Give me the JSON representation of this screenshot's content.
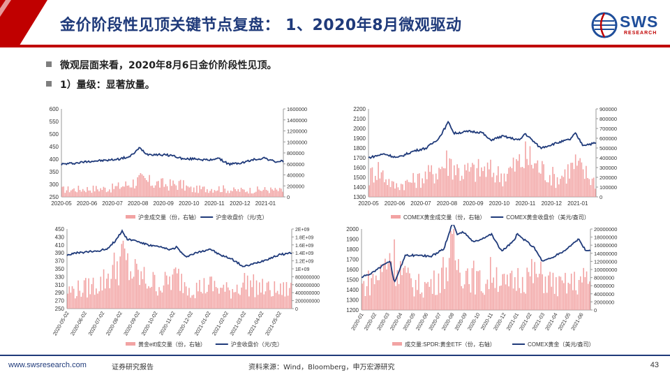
{
  "header": {
    "title": "金价阶段性见顶关键节点复盘： 1、2020年8月微观驱动",
    "logo_text": "SWS",
    "logo_sub": "RESEARCH"
  },
  "bullets": [
    "微观层面来看，2020年8月6日金价阶段性见顶。",
    "1）量级：显著放量。"
  ],
  "footer": {
    "site": "www.swsresearch.com",
    "report": "证券研究报告",
    "source": "资料来源：Wind，Bloomberg，申万宏源研究",
    "page": "43"
  },
  "colors": {
    "bar": "#f2a3a3",
    "line": "#1f3a7a",
    "header_red": "#c00000",
    "navy": "#1f3a7a"
  },
  "chart_data": [
    {
      "type": "bar+line",
      "left_ticks": [
        "600",
        "550",
        "500",
        "450",
        "400",
        "350",
        "300",
        "250"
      ],
      "left_range": [
        250,
        600
      ],
      "right_ticks": [
        "1600000",
        "1400000",
        "1200000",
        "1000000",
        "800000",
        "600000",
        "400000",
        "200000",
        "0"
      ],
      "right_range": [
        0,
        1600000
      ],
      "x_ticks": [
        "2020-05",
        "2020-06",
        "2020-07",
        "2020-08",
        "2020-09",
        "2020-10",
        "2020-11",
        "2020-12",
        "2021-01"
      ],
      "x_range": [
        "2020-05-01",
        "2021-01-31"
      ],
      "legend": [
        "沪金成交量（份，右轴）",
        "沪金收盘价（元/克）"
      ],
      "line": [
        [
          "2020-05-01",
          380
        ],
        [
          "2020-05-20",
          385
        ],
        [
          "2020-06-05",
          392
        ],
        [
          "2020-06-25",
          395
        ],
        [
          "2020-07-10",
          400
        ],
        [
          "2020-07-25",
          410
        ],
        [
          "2020-08-06",
          445
        ],
        [
          "2020-08-15",
          420
        ],
        [
          "2020-08-31",
          418
        ],
        [
          "2020-09-15",
          415
        ],
        [
          "2020-09-30",
          400
        ],
        [
          "2020-10-15",
          402
        ],
        [
          "2020-10-31",
          395
        ],
        [
          "2020-11-10",
          405
        ],
        [
          "2020-11-25",
          380
        ],
        [
          "2020-12-10",
          385
        ],
        [
          "2020-12-25",
          398
        ],
        [
          "2021-01-08",
          405
        ],
        [
          "2021-01-20",
          390
        ],
        [
          "2021-01-31",
          392
        ]
      ],
      "bars": [
        [
          "2020-05-01",
          180000
        ],
        [
          "2020-06-01",
          200000
        ],
        [
          "2020-07-01",
          210000
        ],
        [
          "2020-07-20",
          300000
        ],
        [
          "2020-08-06",
          420000
        ],
        [
          "2020-08-20",
          360000
        ],
        [
          "2020-09-10",
          300000
        ],
        [
          "2020-09-25",
          320000
        ],
        [
          "2020-10-10",
          180000
        ],
        [
          "2020-11-10",
          220000
        ],
        [
          "2020-12-01",
          160000
        ],
        [
          "2021-01-10",
          180000
        ],
        [
          "2021-01-31",
          150000
        ]
      ]
    },
    {
      "type": "bar+line",
      "left_ticks": [
        "2200",
        "2100",
        "2000",
        "1900",
        "1800",
        "1700",
        "1600",
        "1500",
        "1400",
        "1300"
      ],
      "left_range": [
        1300,
        2200
      ],
      "right_ticks": [
        "900000",
        "800000",
        "700000",
        "600000",
        "500000",
        "400000",
        "300000",
        "200000",
        "100000",
        "0"
      ],
      "right_range": [
        0,
        900000
      ],
      "x_ticks": [
        "2020-05",
        "2020-06",
        "2020-07",
        "2020-08",
        "2020-09",
        "2020-10",
        "2020-11",
        "2020-12",
        "2021-01"
      ],
      "x_range": [
        "2020-05-01",
        "2021-01-31"
      ],
      "legend": [
        "COMEX黄金成交量（份，右轴）",
        "COMEX黄金收盘价（美元/盎司）"
      ],
      "line": [
        [
          "2020-05-01",
          1700
        ],
        [
          "2020-05-20",
          1740
        ],
        [
          "2020-06-05",
          1700
        ],
        [
          "2020-06-25",
          1770
        ],
        [
          "2020-07-10",
          1800
        ],
        [
          "2020-07-25",
          1900
        ],
        [
          "2020-08-06",
          2070
        ],
        [
          "2020-08-12",
          1950
        ],
        [
          "2020-08-31",
          1970
        ],
        [
          "2020-09-15",
          1960
        ],
        [
          "2020-09-25",
          1880
        ],
        [
          "2020-10-10",
          1920
        ],
        [
          "2020-10-31",
          1880
        ],
        [
          "2020-11-06",
          1950
        ],
        [
          "2020-11-25",
          1800
        ],
        [
          "2020-12-10",
          1840
        ],
        [
          "2020-12-31",
          1890
        ],
        [
          "2021-01-06",
          1950
        ],
        [
          "2021-01-15",
          1830
        ],
        [
          "2021-01-31",
          1850
        ]
      ],
      "bars": [
        [
          "2020-05-01",
          250000
        ],
        [
          "2020-05-10",
          420000
        ],
        [
          "2020-06-01",
          150000
        ],
        [
          "2020-07-01",
          250000
        ],
        [
          "2020-07-20",
          350000
        ],
        [
          "2020-08-06",
          520000
        ],
        [
          "2020-08-20",
          350000
        ],
        [
          "2020-09-20",
          380000
        ],
        [
          "2020-10-10",
          300000
        ],
        [
          "2020-11-09",
          560000
        ],
        [
          "2020-11-25",
          400000
        ],
        [
          "2020-12-15",
          250000
        ],
        [
          "2021-01-06",
          450000
        ],
        [
          "2021-01-31",
          200000
        ]
      ]
    },
    {
      "type": "bar+line",
      "left_ticks": [
        "450",
        "430",
        "410",
        "390",
        "370",
        "350",
        "330",
        "310",
        "290",
        "270",
        "250"
      ],
      "left_range": [
        250,
        450
      ],
      "right_ticks": [
        "2E+09",
        "1.8E+09",
        "1.6E+09",
        "1.4E+09",
        "1.2E+09",
        "1E+09",
        "800000000",
        "600000000",
        "400000000",
        "200000000",
        "0"
      ],
      "right_range": [
        0,
        2000000000
      ],
      "x_ticks": [
        "2020-05-02",
        "2020-06-02",
        "2020-07-02",
        "2020-08-02",
        "2020-09-02",
        "2020-10-02",
        "2020-11-02",
        "2020-12-02",
        "2021-01-02",
        "2021-02-02",
        "2021-03-02",
        "2021-04-02",
        "2021-05-02"
      ],
      "x_range": [
        "2020-05-01",
        "2021-06-01"
      ],
      "legend": [
        "黄金etf成交量（份，右轴）",
        "沪金收盘价（元/克）"
      ],
      "line": [
        [
          "2020-05-01",
          385
        ],
        [
          "2020-05-20",
          390
        ],
        [
          "2020-06-05",
          392
        ],
        [
          "2020-06-25",
          395
        ],
        [
          "2020-07-10",
          400
        ],
        [
          "2020-07-25",
          420
        ],
        [
          "2020-08-06",
          445
        ],
        [
          "2020-08-15",
          425
        ],
        [
          "2020-08-31",
          420
        ],
        [
          "2020-09-20",
          410
        ],
        [
          "2020-10-10",
          405
        ],
        [
          "2020-10-31",
          398
        ],
        [
          "2020-11-10",
          405
        ],
        [
          "2020-11-25",
          380
        ],
        [
          "2020-12-15",
          390
        ],
        [
          "2021-01-08",
          400
        ],
        [
          "2021-01-25",
          385
        ],
        [
          "2021-02-15",
          375
        ],
        [
          "2021-03-08",
          355
        ],
        [
          "2021-03-25",
          362
        ],
        [
          "2021-04-15",
          372
        ],
        [
          "2021-05-10",
          385
        ],
        [
          "2021-05-31",
          390
        ]
      ],
      "bars": [
        [
          "2020-05-01",
          600000000
        ],
        [
          "2020-06-01",
          700000000
        ],
        [
          "2020-07-01",
          900000000
        ],
        [
          "2020-07-25",
          1400000000
        ],
        [
          "2020-08-06",
          1800000000
        ],
        [
          "2020-08-20",
          1300000000
        ],
        [
          "2020-09-15",
          1000000000
        ],
        [
          "2020-10-15",
          800000000
        ],
        [
          "2020-11-10",
          1100000000
        ],
        [
          "2020-12-10",
          700000000
        ],
        [
          "2021-01-10",
          800000000
        ],
        [
          "2021-02-10",
          600000000
        ],
        [
          "2021-03-10",
          900000000
        ],
        [
          "2021-04-10",
          700000000
        ],
        [
          "2021-05-10",
          600000000
        ],
        [
          "2021-05-31",
          700000000
        ]
      ]
    },
    {
      "type": "bar+line",
      "left_ticks": [
        "2000",
        "1900",
        "1800",
        "1700",
        "1600",
        "1500",
        "1400",
        "1300",
        "1200"
      ],
      "left_range": [
        1200,
        2000
      ],
      "right_ticks": [
        "20000000",
        "18000000",
        "16000000",
        "14000000",
        "12000000",
        "10000000",
        "8000000",
        "6000000",
        "4000000",
        "2000000",
        "0"
      ],
      "right_range": [
        0,
        20000000
      ],
      "x_ticks": [
        "2020-01",
        "2020-02",
        "2020-03",
        "2020-04",
        "2020-05",
        "2020-06",
        "2020-07",
        "2020-08",
        "2020-09",
        "2020-10",
        "2020-11",
        "2020-12",
        "2021-01",
        "2021-02",
        "2021-03",
        "2021-04",
        "2021-05",
        "2021-06"
      ],
      "x_range": [
        "2020-01-01",
        "2021-06-30"
      ],
      "legend": [
        "成交量:SPDR:黄金ETF（份，右轴）",
        "COMEX黄金（美元/盎司）"
      ],
      "line": [
        [
          "2020-01-01",
          1520
        ],
        [
          "2020-02-01",
          1580
        ],
        [
          "2020-02-20",
          1640
        ],
        [
          "2020-03-10",
          1680
        ],
        [
          "2020-03-19",
          1470
        ],
        [
          "2020-04-01",
          1600
        ],
        [
          "2020-04-15",
          1740
        ],
        [
          "2020-05-15",
          1740
        ],
        [
          "2020-06-15",
          1730
        ],
        [
          "2020-07-15",
          1800
        ],
        [
          "2020-08-06",
          2070
        ],
        [
          "2020-08-15",
          1950
        ],
        [
          "2020-09-01",
          1970
        ],
        [
          "2020-09-25",
          1870
        ],
        [
          "2020-10-15",
          1910
        ],
        [
          "2020-11-06",
          1950
        ],
        [
          "2020-11-30",
          1780
        ],
        [
          "2020-12-31",
          1890
        ],
        [
          "2021-01-06",
          1950
        ],
        [
          "2021-02-15",
          1820
        ],
        [
          "2021-03-08",
          1680
        ],
        [
          "2021-04-01",
          1720
        ],
        [
          "2021-05-01",
          1790
        ],
        [
          "2021-06-01",
          1900
        ],
        [
          "2021-06-20",
          1780
        ]
      ],
      "bars": [
        [
          "2020-01-01",
          8000000
        ],
        [
          "2020-02-15",
          12000000
        ],
        [
          "2020-03-10",
          20000000
        ],
        [
          "2020-03-25",
          16000000
        ],
        [
          "2020-04-20",
          10000000
        ],
        [
          "2020-05-20",
          8000000
        ],
        [
          "2020-06-20",
          9000000
        ],
        [
          "2020-07-20",
          14000000
        ],
        [
          "2020-08-06",
          20000000
        ],
        [
          "2020-08-20",
          15000000
        ],
        [
          "2020-09-20",
          12000000
        ],
        [
          "2020-10-20",
          8000000
        ],
        [
          "2020-11-10",
          14000000
        ],
        [
          "2020-12-10",
          8000000
        ],
        [
          "2021-01-10",
          11000000
        ],
        [
          "2021-02-15",
          12000000
        ],
        [
          "2021-03-10",
          11000000
        ],
        [
          "2021-04-15",
          8000000
        ],
        [
          "2021-05-15",
          9000000
        ],
        [
          "2021-06-15",
          10000000
        ]
      ]
    }
  ]
}
